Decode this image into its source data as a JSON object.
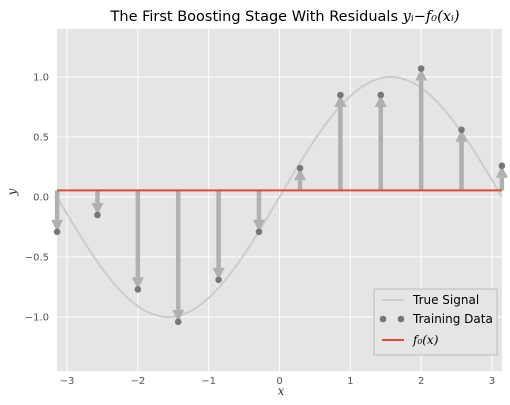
{
  "chart_data": {
    "type": "line",
    "title": "The First Boosting Stage With Residuals y_i−f_0(x_i)",
    "title_text": "The First Boosting Stage With Residuals ",
    "title_math": "yᵢ−f₀(xᵢ)",
    "xlabel": "x",
    "ylabel": "y",
    "xlim": [
      -3.14159,
      3.14159
    ],
    "ylim": [
      -1.45,
      1.4
    ],
    "xticks": [
      -3,
      -2,
      -1,
      0,
      1,
      2,
      3
    ],
    "xtick_labels": [
      "−3",
      "−2",
      "−1",
      "0",
      "1",
      "2",
      "3"
    ],
    "yticks": [
      -1.0,
      -0.5,
      0.0,
      0.5,
      1.0
    ],
    "ytick_labels": [
      "−1.0",
      "−0.5",
      "0.0",
      "0.5",
      "1.0"
    ],
    "grid": true,
    "legend_position": "lower-right",
    "true_signal": {
      "label": "True Signal",
      "function": "sin(x)",
      "color": "#cccccc"
    },
    "training_data": {
      "label": "Training Data",
      "color": "#777777",
      "points": [
        {
          "x": -3.14,
          "y": -0.29
        },
        {
          "x": -2.57,
          "y": -0.15
        },
        {
          "x": -2.0,
          "y": -0.77
        },
        {
          "x": -1.43,
          "y": -1.04
        },
        {
          "x": -0.86,
          "y": -0.69
        },
        {
          "x": -0.29,
          "y": -0.29
        },
        {
          "x": 0.29,
          "y": 0.24
        },
        {
          "x": 0.86,
          "y": 0.85
        },
        {
          "x": 1.43,
          "y": 0.85
        },
        {
          "x": 2.0,
          "y": 1.07
        },
        {
          "x": 2.57,
          "y": 0.56
        },
        {
          "x": 3.14,
          "y": 0.26
        }
      ]
    },
    "f0": {
      "label": "f₀(x)",
      "value": 0.055,
      "color": "#e24a33"
    },
    "residual_arrow_color": "#b0b0b0"
  }
}
